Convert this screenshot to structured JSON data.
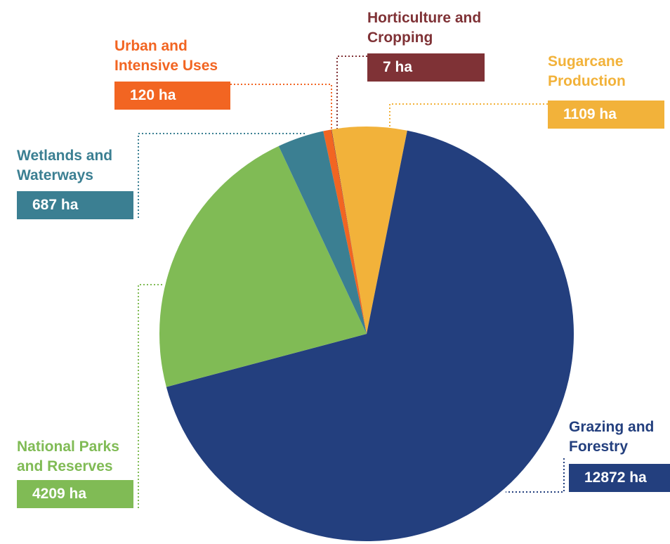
{
  "chart_data": {
    "type": "pie",
    "categories": [
      "Urban and Intensive Uses",
      "Horticulture and Cropping",
      "Sugarcane Production",
      "Grazing and Forestry",
      "National Parks and Reserves",
      "Wetlands and Waterways"
    ],
    "values": [
      120,
      7,
      1109,
      12872,
      4209,
      687
    ],
    "value_labels": [
      "120 ha",
      "7 ha",
      "1109 ha",
      "12872 ha",
      "4209 ha",
      "687 ha"
    ],
    "colors": [
      "#f26522",
      "#7f3236",
      "#f2b23a",
      "#233f7e",
      "#80bb55",
      "#3b7f92"
    ]
  }
}
